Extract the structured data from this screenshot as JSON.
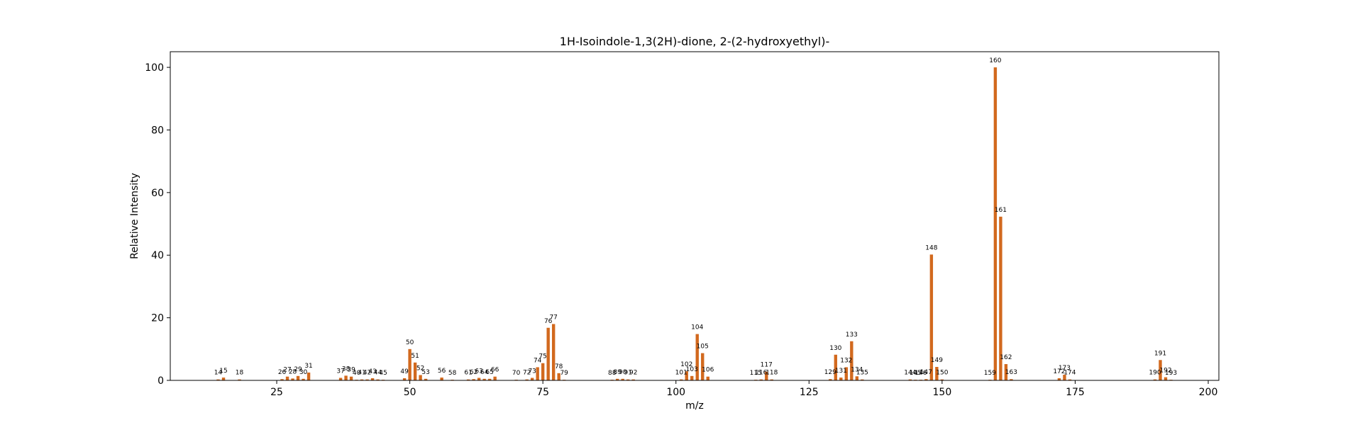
{
  "chart_data": {
    "type": "bar",
    "title": "1H-Isoindole-1,3(2H)-dione, 2-(2-hydroxyethyl)-",
    "xlabel": "m/z",
    "ylabel": "Relative Intensity",
    "xlim": [
      5,
      202
    ],
    "ylim": [
      0,
      105
    ],
    "xticks": [
      25,
      50,
      75,
      100,
      125,
      150,
      175,
      200
    ],
    "yticks": [
      0,
      20,
      40,
      60,
      80,
      100
    ],
    "bar_color": "#d2691e",
    "grid": false,
    "peaks": [
      {
        "mz": 14,
        "intensity": 0.3,
        "label": "14"
      },
      {
        "mz": 15,
        "intensity": 0.9,
        "label": "15"
      },
      {
        "mz": 18,
        "intensity": 0.3,
        "label": "18"
      },
      {
        "mz": 26,
        "intensity": 0.4,
        "label": "26"
      },
      {
        "mz": 27,
        "intensity": 1.2,
        "label": "27"
      },
      {
        "mz": 28,
        "intensity": 0.6,
        "label": "28"
      },
      {
        "mz": 29,
        "intensity": 1.4,
        "label": "29"
      },
      {
        "mz": 30,
        "intensity": 0.5,
        "label": "30"
      },
      {
        "mz": 31,
        "intensity": 2.5,
        "label": "31"
      },
      {
        "mz": 37,
        "intensity": 0.8,
        "label": "37"
      },
      {
        "mz": 38,
        "intensity": 1.5,
        "label": "38"
      },
      {
        "mz": 39,
        "intensity": 1.2,
        "label": "39"
      },
      {
        "mz": 40,
        "intensity": 0.2,
        "label": "40"
      },
      {
        "mz": 41,
        "intensity": 0.3,
        "label": "41"
      },
      {
        "mz": 42,
        "intensity": 0.3,
        "label": "42"
      },
      {
        "mz": 43,
        "intensity": 0.7,
        "label": "43"
      },
      {
        "mz": 44,
        "intensity": 0.3,
        "label": "44"
      },
      {
        "mz": 45,
        "intensity": 0.2,
        "label": "45"
      },
      {
        "mz": 49,
        "intensity": 0.7,
        "label": "49"
      },
      {
        "mz": 50,
        "intensity": 10.0,
        "label": "50"
      },
      {
        "mz": 51,
        "intensity": 5.7,
        "label": "51"
      },
      {
        "mz": 52,
        "intensity": 1.7,
        "label": "52"
      },
      {
        "mz": 53,
        "intensity": 0.5,
        "label": "53"
      },
      {
        "mz": 56,
        "intensity": 0.9,
        "label": "56"
      },
      {
        "mz": 58,
        "intensity": 0.2,
        "label": "58"
      },
      {
        "mz": 61,
        "intensity": 0.3,
        "label": "61"
      },
      {
        "mz": 62,
        "intensity": 0.4,
        "label": "62"
      },
      {
        "mz": 63,
        "intensity": 0.8,
        "label": "63"
      },
      {
        "mz": 64,
        "intensity": 0.5,
        "label": "64"
      },
      {
        "mz": 65,
        "intensity": 0.5,
        "label": "65"
      },
      {
        "mz": 66,
        "intensity": 1.2,
        "label": "66"
      },
      {
        "mz": 70,
        "intensity": 0.2,
        "label": "70"
      },
      {
        "mz": 72,
        "intensity": 0.3,
        "label": "72"
      },
      {
        "mz": 73,
        "intensity": 0.8,
        "label": "73"
      },
      {
        "mz": 74,
        "intensity": 4.2,
        "label": "74"
      },
      {
        "mz": 75,
        "intensity": 5.5,
        "label": "75"
      },
      {
        "mz": 76,
        "intensity": 16.8,
        "label": "76"
      },
      {
        "mz": 77,
        "intensity": 18.0,
        "label": "77"
      },
      {
        "mz": 78,
        "intensity": 2.3,
        "label": "78"
      },
      {
        "mz": 79,
        "intensity": 0.2,
        "label": "79"
      },
      {
        "mz": 88,
        "intensity": 0.2,
        "label": "88"
      },
      {
        "mz": 89,
        "intensity": 0.5,
        "label": "89"
      },
      {
        "mz": 90,
        "intensity": 0.5,
        "label": "90"
      },
      {
        "mz": 91,
        "intensity": 0.3,
        "label": "91"
      },
      {
        "mz": 92,
        "intensity": 0.3,
        "label": "92"
      },
      {
        "mz": 101,
        "intensity": 0.3,
        "label": "101"
      },
      {
        "mz": 102,
        "intensity": 2.9,
        "label": "102"
      },
      {
        "mz": 103,
        "intensity": 1.4,
        "label": "103"
      },
      {
        "mz": 104,
        "intensity": 14.8,
        "label": "104"
      },
      {
        "mz": 105,
        "intensity": 8.7,
        "label": "105"
      },
      {
        "mz": 106,
        "intensity": 1.2,
        "label": "106"
      },
      {
        "mz": 115,
        "intensity": 0.2,
        "label": "115"
      },
      {
        "mz": 116,
        "intensity": 0.3,
        "label": "116"
      },
      {
        "mz": 117,
        "intensity": 2.8,
        "label": "117"
      },
      {
        "mz": 118,
        "intensity": 0.3,
        "label": "118"
      },
      {
        "mz": 129,
        "intensity": 0.4,
        "label": "129"
      },
      {
        "mz": 130,
        "intensity": 8.2,
        "label": "130"
      },
      {
        "mz": 131,
        "intensity": 0.9,
        "label": "131"
      },
      {
        "mz": 132,
        "intensity": 4.2,
        "label": "132"
      },
      {
        "mz": 133,
        "intensity": 12.5,
        "label": "133"
      },
      {
        "mz": 134,
        "intensity": 1.3,
        "label": "134"
      },
      {
        "mz": 135,
        "intensity": 0.3,
        "label": "135"
      },
      {
        "mz": 144,
        "intensity": 0.3,
        "label": "144"
      },
      {
        "mz": 145,
        "intensity": 0.2,
        "label": "145"
      },
      {
        "mz": 146,
        "intensity": 0.2,
        "label": "146"
      },
      {
        "mz": 147,
        "intensity": 0.4,
        "label": "147"
      },
      {
        "mz": 148,
        "intensity": 40.2,
        "label": "148"
      },
      {
        "mz": 149,
        "intensity": 4.3,
        "label": "149"
      },
      {
        "mz": 150,
        "intensity": 0.3,
        "label": "150"
      },
      {
        "mz": 159,
        "intensity": 0.2,
        "label": "159"
      },
      {
        "mz": 160,
        "intensity": 100.0,
        "label": "160"
      },
      {
        "mz": 161,
        "intensity": 52.3,
        "label": "161"
      },
      {
        "mz": 162,
        "intensity": 5.2,
        "label": "162"
      },
      {
        "mz": 163,
        "intensity": 0.4,
        "label": "163"
      },
      {
        "mz": 172,
        "intensity": 0.7,
        "label": "172"
      },
      {
        "mz": 173,
        "intensity": 1.8,
        "label": "173"
      },
      {
        "mz": 174,
        "intensity": 0.3,
        "label": "174"
      },
      {
        "mz": 190,
        "intensity": 0.3,
        "label": "190"
      },
      {
        "mz": 191,
        "intensity": 6.5,
        "label": "191"
      },
      {
        "mz": 192,
        "intensity": 1.0,
        "label": "192"
      },
      {
        "mz": 193,
        "intensity": 0.2,
        "label": "193"
      }
    ]
  }
}
